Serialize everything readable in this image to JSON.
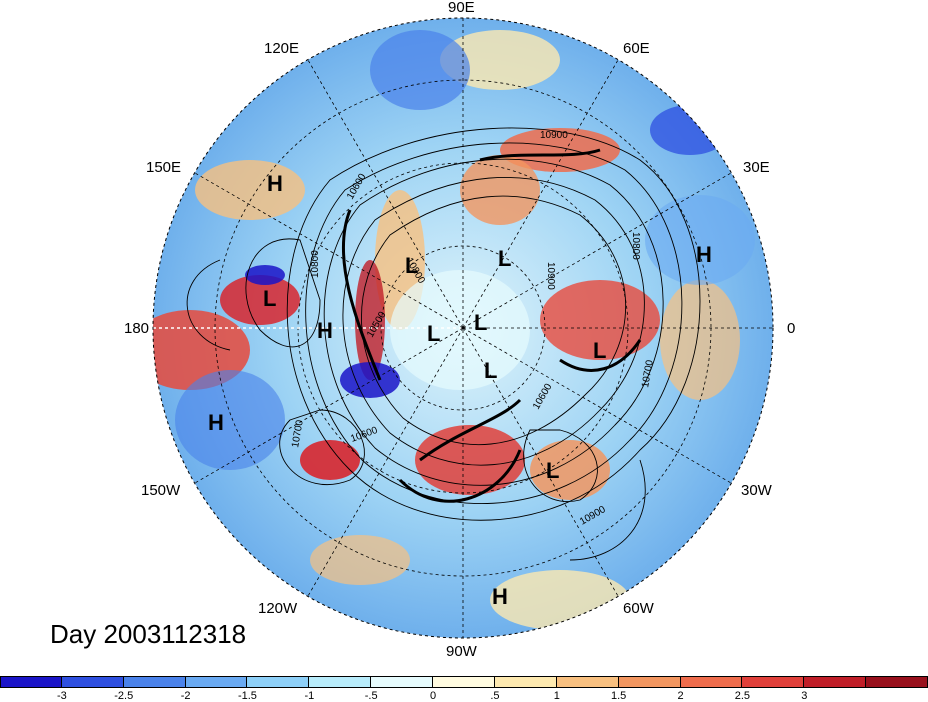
{
  "longitude_labels": {
    "north": "90E",
    "east": "0",
    "south": "90W",
    "west": "180",
    "ne_upper": "60E",
    "ne_lower": "30E",
    "se_upper": "30W",
    "se_lower": "60W",
    "sw_lower": "120W",
    "sw_upper": "150W",
    "nw_lower": "150E",
    "nw_upper": "120E"
  },
  "pressure_centers": [
    {
      "type": "H",
      "label": "H"
    },
    {
      "type": "H",
      "label": "H"
    },
    {
      "type": "H",
      "label": "H"
    },
    {
      "type": "H",
      "label": "H"
    },
    {
      "type": "H",
      "label": "H"
    },
    {
      "type": "L",
      "label": "L"
    },
    {
      "type": "L",
      "label": "L"
    },
    {
      "type": "L",
      "label": "L"
    },
    {
      "type": "L",
      "label": "L"
    },
    {
      "type": "L",
      "label": "L"
    },
    {
      "type": "L",
      "label": "L"
    },
    {
      "type": "L",
      "label": "L"
    },
    {
      "type": "L",
      "label": "L"
    }
  ],
  "contour_labels": [
    "10900",
    "10600",
    "10800",
    "10900",
    "10800",
    "10700",
    "10600",
    "10800",
    "10600",
    "10700",
    "10900",
    "10500"
  ],
  "day_label": "Day 2003112318",
  "colorbar": {
    "colors": [
      "#1a14c8",
      "#2e4fe0",
      "#4a82ea",
      "#6aaaf2",
      "#8ed0f8",
      "#b8ecfb",
      "#e6fbfd",
      "#fffbe0",
      "#fde9b0",
      "#f8c080",
      "#f29660",
      "#ee6c4c",
      "#e0403a",
      "#c01e28",
      "#98101c"
    ],
    "ticks": [
      "-3",
      "-2.5",
      "-2",
      "-1.5",
      "-1",
      "-.5",
      "0",
      ".5",
      "1",
      "1.5",
      "2",
      "2.5",
      "3"
    ]
  }
}
